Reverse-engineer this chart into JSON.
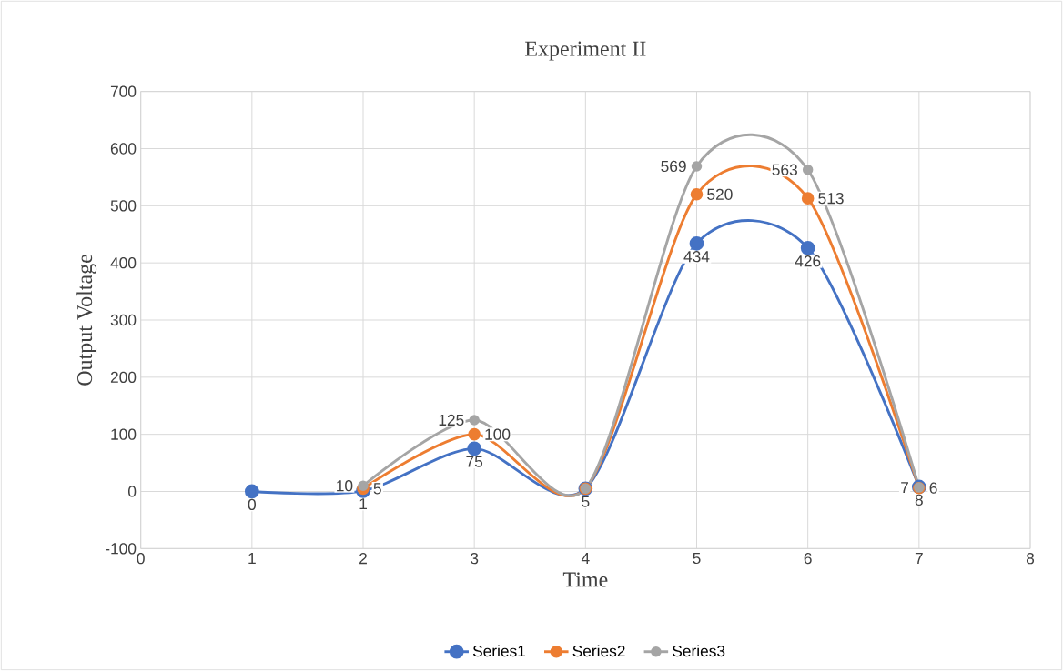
{
  "chart_data": {
    "type": "line",
    "title": "Experiment II",
    "xlabel": "Time",
    "ylabel": "Output Voltage",
    "x": [
      1,
      2,
      3,
      4,
      5,
      6,
      7
    ],
    "xlim": [
      0,
      8
    ],
    "xticks": [
      0,
      1,
      2,
      3,
      4,
      5,
      6,
      7,
      8
    ],
    "ylim": [
      -100,
      700
    ],
    "yticks": [
      -100,
      0,
      100,
      200,
      300,
      400,
      500,
      600,
      700
    ],
    "grid": true,
    "legend": "bottom",
    "marker": "circle",
    "line_style": "solid",
    "series": [
      {
        "name": "Series1",
        "color": "#4472c4",
        "values": [
          0,
          1,
          75,
          5,
          434,
          426,
          8
        ],
        "value_labels": [
          "0",
          "1",
          "75",
          "5",
          "434",
          "426",
          "8"
        ]
      },
      {
        "name": "Series2",
        "color": "#ed7d31",
        "values": [
          null,
          5,
          100,
          5,
          520,
          513,
          6
        ],
        "value_labels": [
          null,
          "5",
          "100",
          null,
          "520",
          "513",
          "6"
        ]
      },
      {
        "name": "Series3",
        "color": "#a5a5a5",
        "values": [
          null,
          10,
          125,
          5,
          569,
          563,
          7
        ],
        "value_labels": [
          null,
          "10",
          "125",
          null,
          "569",
          "563",
          "7"
        ]
      }
    ]
  }
}
